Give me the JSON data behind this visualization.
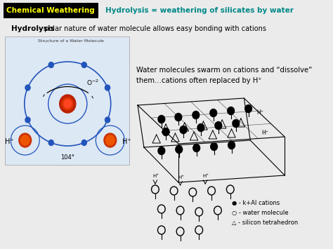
{
  "bg_color": "#ebebeb",
  "header_box_color": "#000000",
  "header_box_text": "Chemical Weathering",
  "header_box_text_color": "#ffff00",
  "header_title_text": "Hydrolysis = weathering of silicates by water",
  "header_title_color": "#008888",
  "subheading_bold": "Hydrolysis",
  "subheading_rest": " – polar nature of water molecule allows easy bonding with cations",
  "subheading_color": "#000000",
  "water_box_bg": "#dde8f5",
  "water_box_title": "Structure of a Water Molecule",
  "body_text_line1": "Water molecules swarm on cations and “dissolve”",
  "body_text_line2": "them…cations often replaced by H⁺",
  "legend_line1": "● - k+Al cations",
  "legend_line2": "○ - water molecule",
  "legend_line3": "△ - silicon tetrahedron",
  "electron_color": "#2255bb",
  "orbit_color": "#2255bb",
  "oxygen_color": "#cc2200",
  "hydrogen_color": "#dd5500"
}
